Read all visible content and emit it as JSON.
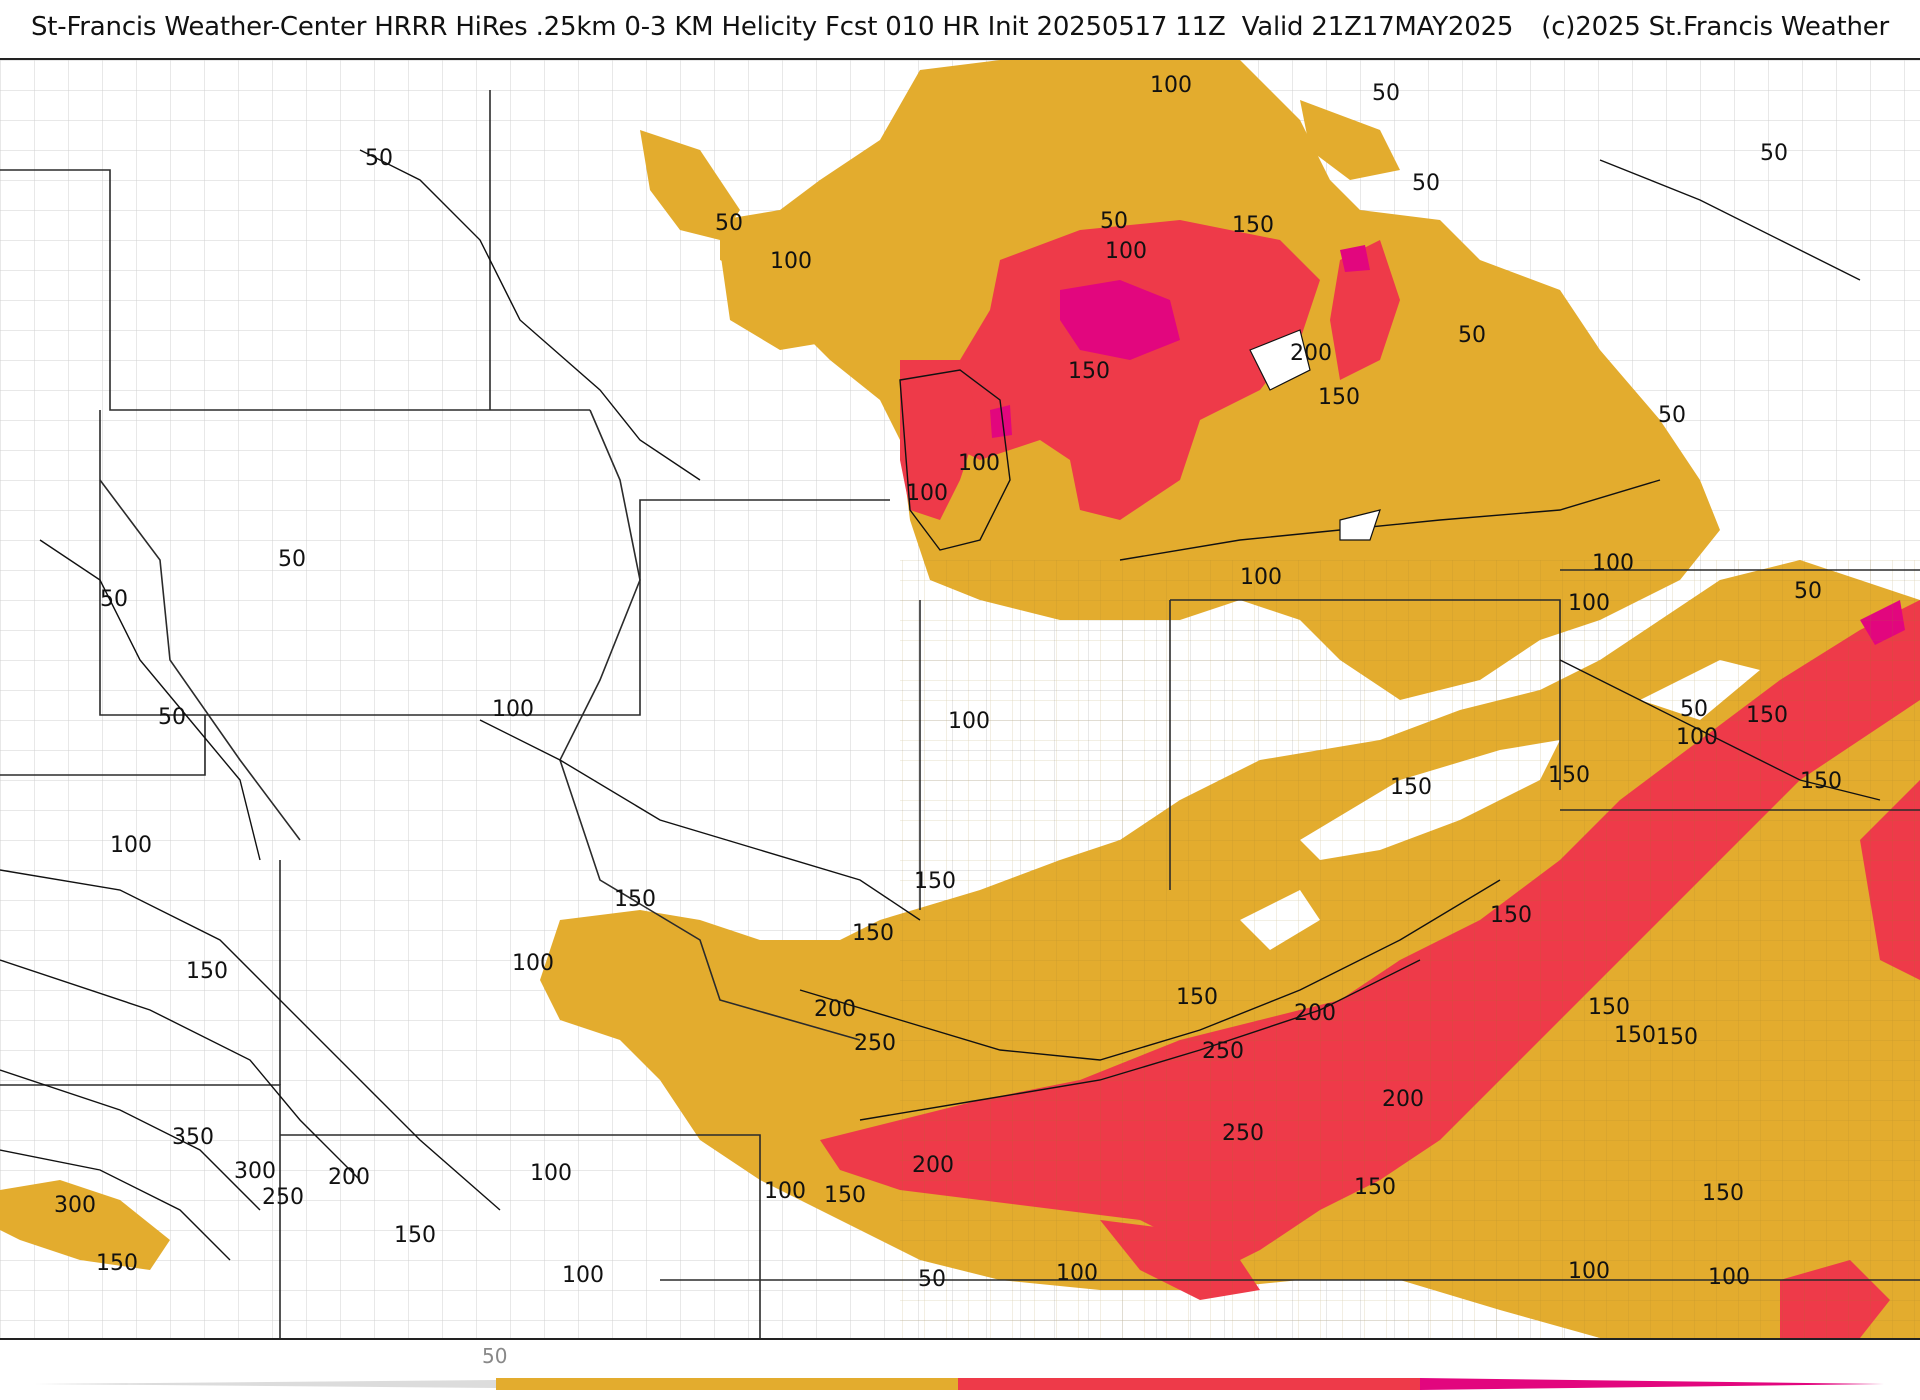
{
  "header": {
    "title": "St-Francis Weather-Center HRRR HiRes .25km 0-3 KM Helicity Fcst 010 HR Init 20250517 11Z  Valid 21Z17MAY2025",
    "copyright": "(c)2025 St.Francis Weather"
  },
  "map": {
    "fill_colors": {
      "level_100": "#e3ac2e",
      "level_200": "#ee3a49",
      "level_300": "#e2067e",
      "background": "#ffffff",
      "county_lines": "#c8c8c8",
      "state_lines": "#2b2b2b",
      "contours": "#111111"
    },
    "contour_labels": [
      {
        "text": "100"
      },
      {
        "text": "50"
      },
      {
        "text": "50"
      },
      {
        "text": "50"
      },
      {
        "text": "50"
      },
      {
        "text": "50"
      },
      {
        "text": "150"
      },
      {
        "text": "50"
      },
      {
        "text": "100"
      },
      {
        "text": "100"
      },
      {
        "text": "50"
      },
      {
        "text": "200"
      },
      {
        "text": "150"
      },
      {
        "text": "150"
      },
      {
        "text": "100"
      },
      {
        "text": "100"
      },
      {
        "text": "50"
      },
      {
        "text": "50"
      },
      {
        "text": "50"
      },
      {
        "text": "50"
      },
      {
        "text": "100"
      },
      {
        "text": "100"
      },
      {
        "text": "50"
      },
      {
        "text": "100"
      },
      {
        "text": "100"
      },
      {
        "text": "100"
      },
      {
        "text": "50"
      },
      {
        "text": "150"
      },
      {
        "text": "100"
      },
      {
        "text": "150"
      },
      {
        "text": "150"
      },
      {
        "text": "150"
      },
      {
        "text": "100"
      },
      {
        "text": "150"
      },
      {
        "text": "150"
      },
      {
        "text": "150"
      },
      {
        "text": "100"
      },
      {
        "text": "200"
      },
      {
        "text": "250"
      },
      {
        "text": "150"
      },
      {
        "text": "200"
      },
      {
        "text": "150"
      },
      {
        "text": "250"
      },
      {
        "text": "150"
      },
      {
        "text": "150"
      },
      {
        "text": "200"
      },
      {
        "text": "250"
      },
      {
        "text": "150"
      },
      {
        "text": "150"
      },
      {
        "text": "350"
      },
      {
        "text": "200"
      },
      {
        "text": "300"
      },
      {
        "text": "250"
      },
      {
        "text": "300"
      },
      {
        "text": "200"
      },
      {
        "text": "100"
      },
      {
        "text": "100"
      },
      {
        "text": "150"
      },
      {
        "text": "150"
      },
      {
        "text": "150"
      },
      {
        "text": "150"
      },
      {
        "text": "100"
      },
      {
        "text": "50"
      },
      {
        "text": "100"
      },
      {
        "text": "100"
      },
      {
        "text": "100"
      },
      {
        "text": "150"
      }
    ]
  },
  "colorbar": {
    "tick_labels": [
      "50"
    ],
    "colors": [
      "#e3ac2e",
      "#ee3a49",
      "#e2067e"
    ]
  }
}
